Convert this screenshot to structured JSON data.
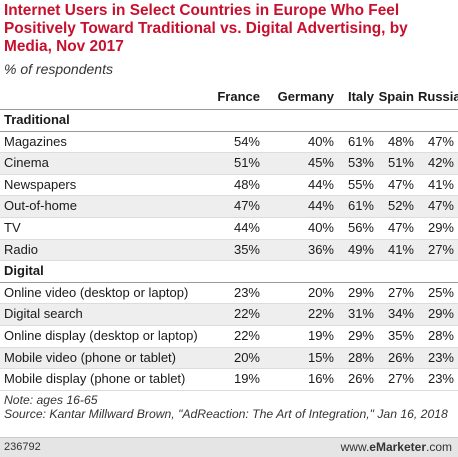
{
  "chart_data": {
    "type": "table",
    "title": "Internet Users in Select Countries in Europe Who Feel Positively Toward Traditional vs. Digital Advertising, by Media, Nov 2017",
    "subtitle": "% of respondents",
    "columns": [
      "France",
      "Germany",
      "Italy",
      "Spain",
      "Russia"
    ],
    "sections": [
      {
        "name": "Traditional",
        "rows": [
          {
            "label": "Magazines",
            "values": [
              "54%",
              "40%",
              "61%",
              "48%",
              "47%"
            ]
          },
          {
            "label": "Cinema",
            "values": [
              "51%",
              "45%",
              "53%",
              "51%",
              "42%"
            ]
          },
          {
            "label": "Newspapers",
            "values": [
              "48%",
              "44%",
              "55%",
              "47%",
              "41%"
            ]
          },
          {
            "label": "Out-of-home",
            "values": [
              "47%",
              "44%",
              "61%",
              "52%",
              "47%"
            ]
          },
          {
            "label": "TV",
            "values": [
              "44%",
              "40%",
              "56%",
              "47%",
              "29%"
            ]
          },
          {
            "label": "Radio",
            "values": [
              "35%",
              "36%",
              "49%",
              "41%",
              "27%"
            ]
          }
        ]
      },
      {
        "name": "Digital",
        "rows": [
          {
            "label": "Online video (desktop or laptop)",
            "values": [
              "23%",
              "20%",
              "29%",
              "27%",
              "25%"
            ]
          },
          {
            "label": "Digital search",
            "values": [
              "22%",
              "22%",
              "31%",
              "34%",
              "29%"
            ]
          },
          {
            "label": "Online display (desktop or laptop)",
            "values": [
              "22%",
              "19%",
              "29%",
              "35%",
              "28%"
            ]
          },
          {
            "label": "Mobile video (phone or tablet)",
            "values": [
              "20%",
              "15%",
              "28%",
              "26%",
              "23%"
            ]
          },
          {
            "label": "Mobile display (phone or tablet)",
            "values": [
              "19%",
              "16%",
              "26%",
              "27%",
              "23%"
            ]
          }
        ]
      }
    ],
    "note": "Note: ages 16-65",
    "source": "Source: Kantar Millward Brown, \"AdReaction: The Art of Integration,\" Jan 16, 2018"
  },
  "footer": {
    "chart_id": "236792",
    "brand_prefix": "www.",
    "brand_name": "eMarketer",
    "brand_suffix": ".com"
  },
  "colors": {
    "title": "#c8102e",
    "row_alt": "#eeeeee",
    "footer_bg": "#e5e5e5"
  }
}
